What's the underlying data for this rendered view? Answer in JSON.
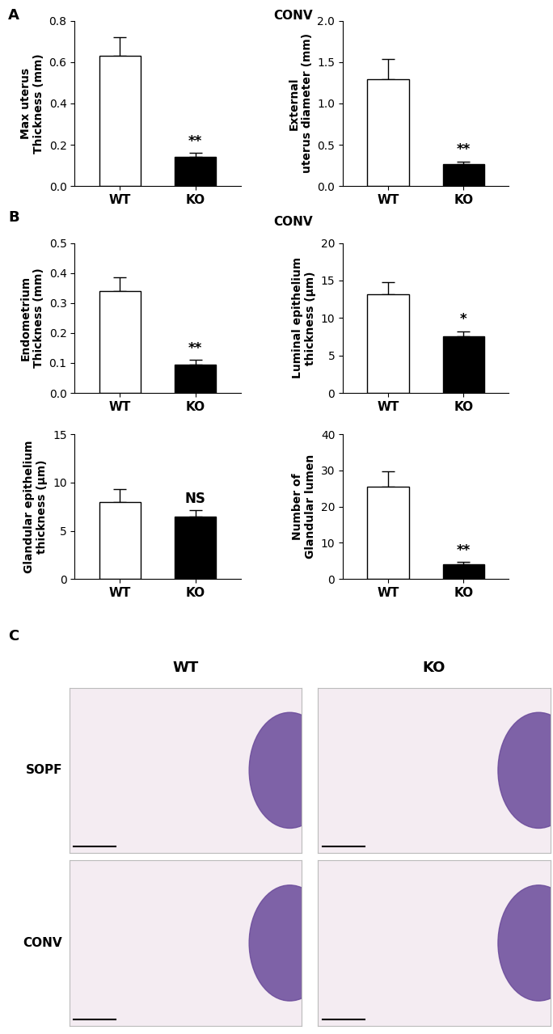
{
  "chart_data": [
    {
      "type": "bar",
      "panel": "A",
      "ylabel": "Max uterus\nThickness (mm)",
      "categories": [
        "WT",
        "KO"
      ],
      "values": [
        0.63,
        0.14
      ],
      "errors": [
        0.09,
        0.02
      ],
      "colors": [
        "#ffffff",
        "#000000"
      ],
      "annotation": {
        "category": "KO",
        "text": "**"
      },
      "ylim": [
        0,
        0.8
      ],
      "yticks": [
        {
          "value": 0,
          "label": "0.0"
        },
        {
          "value": 0.2,
          "label": "0.2"
        },
        {
          "value": 0.4,
          "label": "0.4"
        },
        {
          "value": 0.6,
          "label": "0.6"
        },
        {
          "value": 0.8,
          "label": "0.8"
        }
      ]
    },
    {
      "type": "bar",
      "panel": "A",
      "ylabel": "External\nuterus diameter (mm)",
      "categories": [
        "WT",
        "KO"
      ],
      "values": [
        1.29,
        0.27
      ],
      "errors": [
        0.25,
        0.03
      ],
      "colors": [
        "#ffffff",
        "#000000"
      ],
      "annotation": {
        "category": "KO",
        "text": "**"
      },
      "ylim": [
        0,
        2.0
      ],
      "yticks": [
        {
          "value": 0,
          "label": "0.0"
        },
        {
          "value": 0.5,
          "label": "0.5"
        },
        {
          "value": 1.0,
          "label": "1.0"
        },
        {
          "value": 1.5,
          "label": "1.5"
        },
        {
          "value": 2.0,
          "label": "2.0"
        }
      ]
    },
    {
      "type": "bar",
      "panel": "B",
      "ylabel": "Endometrium\nThickness (mm)",
      "categories": [
        "WT",
        "KO"
      ],
      "values": [
        0.34,
        0.095
      ],
      "errors": [
        0.045,
        0.015
      ],
      "colors": [
        "#ffffff",
        "#000000"
      ],
      "annotation": {
        "category": "KO",
        "text": "**"
      },
      "ylim": [
        0,
        0.5
      ],
      "yticks": [
        {
          "value": 0,
          "label": "0.0"
        },
        {
          "value": 0.1,
          "label": "0.1"
        },
        {
          "value": 0.2,
          "label": "0.2"
        },
        {
          "value": 0.3,
          "label": "0.3"
        },
        {
          "value": 0.4,
          "label": "0.4"
        },
        {
          "value": 0.5,
          "label": "0.5"
        }
      ]
    },
    {
      "type": "bar",
      "panel": "B",
      "ylabel": "Luminal epithelium\nthickness (μm)",
      "categories": [
        "WT",
        "KO"
      ],
      "values": [
        13.2,
        7.5
      ],
      "errors": [
        1.6,
        0.7
      ],
      "colors": [
        "#ffffff",
        "#000000"
      ],
      "annotation": {
        "category": "KO",
        "text": "*"
      },
      "ylim": [
        0,
        20
      ],
      "yticks": [
        0,
        5,
        10,
        15,
        20
      ]
    },
    {
      "type": "bar",
      "panel": "B",
      "ylabel": "Glandular epithelium\nthickness (μm)",
      "categories": [
        "WT",
        "KO"
      ],
      "values": [
        8.0,
        6.5
      ],
      "errors": [
        1.3,
        0.6
      ],
      "colors": [
        "#ffffff",
        "#000000"
      ],
      "annotation": {
        "category": "KO",
        "text": "NS"
      },
      "ylim": [
        0,
        15
      ],
      "yticks": [
        0,
        5,
        10,
        15
      ]
    },
    {
      "type": "bar",
      "panel": "B",
      "ylabel": "Number of\nGlandular lumen",
      "categories": [
        "WT",
        "KO"
      ],
      "values": [
        25.5,
        4.0
      ],
      "errors": [
        4.3,
        0.7
      ],
      "colors": [
        "#ffffff",
        "#000000"
      ],
      "annotation": {
        "category": "KO",
        "text": "**"
      },
      "ylim": [
        0,
        40
      ],
      "yticks": [
        0,
        10,
        20,
        30,
        40
      ]
    }
  ],
  "panel_headers": {
    "A": "CONV",
    "B": "CONV"
  },
  "image_grid": {
    "panel": "C",
    "columns": [
      "WT",
      "KO"
    ],
    "rows": [
      "SOPF",
      "CONV"
    ]
  }
}
